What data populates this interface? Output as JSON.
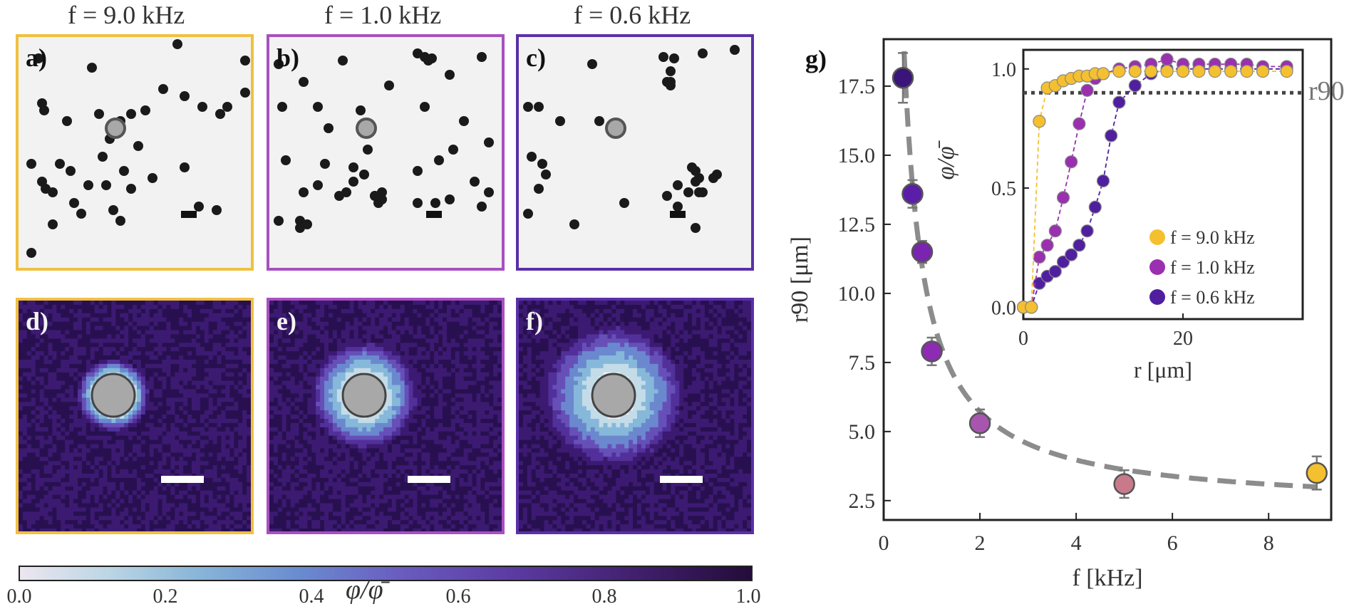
{
  "panel_titles": [
    "f = 9.0 kHz",
    "f = 1.0 kHz",
    "f = 0.6 kHz"
  ],
  "panel_labels": [
    "a)",
    "b)",
    "c)",
    "d)",
    "e)",
    "f)",
    "g)"
  ],
  "colors": {
    "f9": "#f5c02f",
    "f1": "#9a2fb0",
    "f06": "#4f1fa0",
    "fit": "#8c8c8c"
  },
  "colorbar": {
    "ticks": [
      "0.0",
      "0.2",
      "0.4",
      "0.6",
      "0.8",
      "1.0"
    ],
    "label": "φ/φ̄"
  },
  "chart_data": [
    {
      "type": "scatter",
      "title": "",
      "xlabel": "f [kHz]",
      "ylabel": "r90 [μm]",
      "xlim": [
        0,
        9.3
      ],
      "ylim": [
        1.8,
        19.2
      ],
      "xticks": [
        "0",
        "2",
        "4",
        "6",
        "8"
      ],
      "yticks": [
        "2.5",
        "5.0",
        "7.5",
        "10.0",
        "12.5",
        "15.0",
        "17.5"
      ],
      "points": [
        {
          "x": 0.4,
          "y": 17.8,
          "err": 0.9,
          "color": "#3a1478"
        },
        {
          "x": 0.6,
          "y": 13.6,
          "err": 0.5,
          "color": "#5b1ea8"
        },
        {
          "x": 0.8,
          "y": 11.5,
          "err": 0.4,
          "color": "#7a25b0"
        },
        {
          "x": 1.0,
          "y": 7.9,
          "err": 0.5,
          "color": "#8e2bb4"
        },
        {
          "x": 2.0,
          "y": 5.3,
          "err": 0.5,
          "color": "#a855b0"
        },
        {
          "x": 5.0,
          "y": 3.1,
          "err": 0.5,
          "color": "#c87a8a"
        },
        {
          "x": 9.0,
          "y": 3.5,
          "err": 0.6,
          "color": "#f5c02f"
        }
      ],
      "fit": {
        "type": "dashed-curve",
        "a": 7.0,
        "c": 2.22
      }
    },
    {
      "type": "line",
      "title": "",
      "xlabel": "r [μm]",
      "ylabel": "φ/φ̄",
      "xlim": [
        0,
        35
      ],
      "ylim": [
        -0.05,
        1.08
      ],
      "xticks": [
        "0",
        "20"
      ],
      "yticks": [
        "0.0",
        "0.5",
        "1.0"
      ],
      "threshold": {
        "y": 0.9,
        "label": "r90"
      },
      "series": [
        {
          "name": "f = 9.0 kHz",
          "color": "#f5c02f",
          "x": [
            0,
            1,
            2,
            3,
            4,
            5,
            6,
            7,
            8,
            9,
            10,
            12,
            14,
            16,
            18,
            20,
            22,
            24,
            26,
            28,
            30,
            33
          ],
          "y": [
            0,
            0,
            0.78,
            0.92,
            0.93,
            0.95,
            0.96,
            0.97,
            0.97,
            0.98,
            0.98,
            0.99,
            0.99,
            0.99,
            0.99,
            0.99,
            0.99,
            0.99,
            0.99,
            0.99,
            0.99,
            0.99
          ]
        },
        {
          "name": "f = 1.0 kHz",
          "color": "#9a2fb0",
          "x": [
            0,
            1,
            2,
            3,
            4,
            5,
            6,
            7,
            8,
            9,
            10,
            12,
            14,
            16,
            18,
            20,
            22,
            24,
            26,
            28,
            30,
            33
          ],
          "y": [
            0,
            0,
            0.21,
            0.26,
            0.32,
            0.46,
            0.61,
            0.77,
            0.91,
            0.96,
            0.98,
            1.0,
            1.01,
            1.02,
            1.04,
            1.02,
            1.02,
            1.02,
            1.02,
            1.02,
            1.01,
            1.01
          ]
        },
        {
          "name": "f = 0.6 kHz",
          "color": "#4f1fa0",
          "x": [
            0,
            1,
            2,
            3,
            4,
            5,
            6,
            7,
            8,
            9,
            10,
            11,
            12,
            14,
            16,
            18,
            20,
            22,
            24,
            26,
            28,
            30,
            33
          ],
          "y": [
            0,
            0,
            0.1,
            0.13,
            0.15,
            0.19,
            0.22,
            0.26,
            0.32,
            0.42,
            0.53,
            0.72,
            0.86,
            0.93,
            0.98,
            1.0,
            1.0,
            1.0,
            1.0,
            1.0,
            1.0,
            1.0,
            1.0
          ]
        }
      ],
      "legend": "bottom-right"
    }
  ]
}
